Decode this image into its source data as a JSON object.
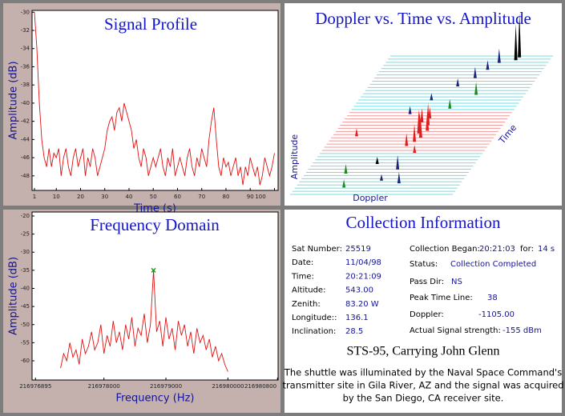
{
  "chart_data": [
    {
      "type": "line",
      "title": "Signal Profile",
      "xlabel": "Time (s)",
      "ylabel": "Amplitude (dB)",
      "x": [
        1,
        2,
        3,
        4,
        5,
        6,
        7,
        8,
        9,
        10,
        11,
        12,
        13,
        14,
        15,
        16,
        17,
        18,
        19,
        20,
        21,
        22,
        23,
        24,
        25,
        26,
        27,
        28,
        29,
        30,
        31,
        32,
        33,
        34,
        35,
        36,
        37,
        38,
        39,
        40,
        41,
        42,
        43,
        44,
        45,
        46,
        47,
        48,
        49,
        50,
        51,
        52,
        53,
        54,
        55,
        56,
        57,
        58,
        59,
        60,
        61,
        62,
        63,
        64,
        65,
        66,
        67,
        68,
        69,
        70,
        71,
        72,
        73,
        74,
        75,
        76,
        77,
        78,
        79,
        80,
        81,
        82,
        83,
        84,
        85,
        86,
        87,
        88,
        89,
        90,
        91,
        92,
        93,
        94,
        95,
        96,
        97,
        98,
        99,
        100
      ],
      "series": [
        {
          "color": "#e01010",
          "values": [
            -30,
            -34,
            -40,
            -44,
            -46,
            -47,
            -45,
            -47,
            -45.5,
            -46,
            -45,
            -48,
            -46,
            -45,
            -47,
            -48,
            -46,
            -45,
            -47,
            -46,
            -45,
            -48,
            -46,
            -47,
            -45,
            -46,
            -48,
            -47,
            -46,
            -45,
            -43,
            -42,
            -41.5,
            -43,
            -41,
            -40.5,
            -42,
            -40,
            -41,
            -42,
            -43,
            -45,
            -44,
            -46,
            -47,
            -45,
            -46,
            -48,
            -47,
            -46,
            -47,
            -46,
            -45,
            -47,
            -48,
            -46,
            -47,
            -45,
            -48,
            -47,
            -46,
            -47,
            -48,
            -46,
            -45,
            -47,
            -48,
            -46,
            -47,
            -45,
            -46,
            -47,
            -44,
            -42,
            -40.5,
            -44,
            -47,
            -48,
            -46,
            -47,
            -46.5,
            -48,
            -47,
            -46,
            -48,
            -47,
            -49,
            -47,
            -48,
            -46,
            -47,
            -48,
            -47,
            -49,
            -48,
            -46,
            -47,
            -48,
            -47,
            -45.5
          ]
        }
      ],
      "xlim": [
        0,
        101.5
      ],
      "xticks": [
        1,
        10,
        20,
        30,
        40,
        50,
        60,
        70,
        80,
        90,
        100
      ],
      "ylim": [
        -49.6,
        -29.8
      ],
      "yticks": [
        -30,
        -32,
        -34,
        -36,
        -38,
        -40,
        -42,
        -44,
        -46,
        -48
      ]
    },
    {
      "type": "waterfall",
      "title": "Doppler vs. Time vs. Amplitude",
      "xlabel": "Doppler",
      "ylabel": "Amplitude",
      "zlabel": "Time",
      "peaks": [
        {
          "t": 0.05,
          "d": 0.3,
          "a": 10,
          "color": "#1a8a1a"
        },
        {
          "t": 0.08,
          "d": 0.62,
          "a": 14,
          "color": "#1a237e"
        },
        {
          "t": 0.1,
          "d": 0.5,
          "a": 8,
          "color": "#1a237e"
        },
        {
          "t": 0.15,
          "d": 0.25,
          "a": 12,
          "color": "#1a8a1a"
        },
        {
          "t": 0.18,
          "d": 0.55,
          "a": 18,
          "color": "#1a237e"
        },
        {
          "t": 0.22,
          "d": 0.4,
          "a": 9,
          "color": "#000000"
        },
        {
          "t": 0.3,
          "d": 0.58,
          "a": 10,
          "color": "#e02020"
        },
        {
          "t": 0.35,
          "d": 0.5,
          "a": 16,
          "color": "#e02020"
        },
        {
          "t": 0.38,
          "d": 0.53,
          "a": 22,
          "color": "#e02020"
        },
        {
          "t": 0.41,
          "d": 0.55,
          "a": 26,
          "color": "#e02020"
        },
        {
          "t": 0.44,
          "d": 0.52,
          "a": 30,
          "color": "#e02020"
        },
        {
          "t": 0.46,
          "d": 0.56,
          "a": 24,
          "color": "#e02020"
        },
        {
          "t": 0.48,
          "d": 0.5,
          "a": 20,
          "color": "#e02020"
        },
        {
          "t": 0.5,
          "d": 0.54,
          "a": 28,
          "color": "#e02020"
        },
        {
          "t": 0.52,
          "d": 0.49,
          "a": 18,
          "color": "#e02020"
        },
        {
          "t": 0.55,
          "d": 0.52,
          "a": 14,
          "color": "#e02020"
        },
        {
          "t": 0.42,
          "d": 0.15,
          "a": 10,
          "color": "#e02020"
        },
        {
          "t": 0.58,
          "d": 0.38,
          "a": 10,
          "color": "#1a237e"
        },
        {
          "t": 0.62,
          "d": 0.6,
          "a": 12,
          "color": "#1a8a1a"
        },
        {
          "t": 0.68,
          "d": 0.45,
          "a": 9,
          "color": "#1a237e"
        },
        {
          "t": 0.72,
          "d": 0.7,
          "a": 16,
          "color": "#1a8a1a"
        },
        {
          "t": 0.78,
          "d": 0.55,
          "a": 10,
          "color": "#1a237e"
        },
        {
          "t": 0.84,
          "d": 0.62,
          "a": 14,
          "color": "#1a237e"
        },
        {
          "t": 0.9,
          "d": 0.66,
          "a": 12,
          "color": "#1a237e"
        },
        {
          "t": 0.95,
          "d": 0.7,
          "a": 18,
          "color": "#1a237e"
        },
        {
          "t": 0.97,
          "d": 0.79,
          "a": 45,
          "color": "#000000"
        },
        {
          "t": 0.99,
          "d": 0.8,
          "a": 55,
          "color": "#000000"
        }
      ]
    },
    {
      "type": "line",
      "title": "Frequency Domain",
      "xlabel": "Frequency (Hz)",
      "ylabel": "Amplitude (dB)",
      "x": [
        216977300,
        216977350,
        216977400,
        216977450,
        216977500,
        216977550,
        216977600,
        216977650,
        216977700,
        216977750,
        216977800,
        216977850,
        216977900,
        216977950,
        216978000,
        216978050,
        216978100,
        216978150,
        216978200,
        216978250,
        216978300,
        216978350,
        216978400,
        216978450,
        216978500,
        216978550,
        216978600,
        216978650,
        216978700,
        216978750,
        216978800,
        216978850,
        216978900,
        216978950,
        216979000,
        216979050,
        216979100,
        216979150,
        216979200,
        216979250,
        216979300,
        216979350,
        216979400,
        216979450,
        216979500,
        216979550,
        216979600,
        216979650,
        216979700,
        216979750,
        216979800,
        216979850,
        216979900,
        216979950,
        216980000
      ],
      "series": [
        {
          "color": "#e01010",
          "values": [
            -62,
            -58,
            -60,
            -55,
            -59,
            -57,
            -61,
            -54,
            -58,
            -56,
            -52,
            -57,
            -55,
            -50,
            -58,
            -53,
            -56,
            -49,
            -55,
            -52,
            -57,
            -50,
            -54,
            -48,
            -56,
            -51,
            -53,
            -47,
            -55,
            -50,
            -35,
            -52,
            -49,
            -56,
            -48,
            -54,
            -51,
            -57,
            -49,
            -53,
            -50,
            -56,
            -52,
            -58,
            -51,
            -55,
            -53,
            -57,
            -54,
            -59,
            -56,
            -60,
            -58,
            -61,
            -63
          ]
        }
      ],
      "marker": {
        "x": 216978800,
        "value": -35,
        "color": "#1a9a1a"
      },
      "xlim": [
        216976840,
        216980810
      ],
      "xticks": [
        216976895,
        216978000,
        216979000,
        216980000,
        216980800
      ],
      "ylim": [
        -65.3,
        -18.9
      ],
      "yticks": [
        -20,
        -25,
        -30,
        -35,
        -40,
        -45,
        -50,
        -55,
        -60
      ]
    }
  ],
  "info": {
    "title": "Collection Information",
    "left": [
      {
        "label": "Sat Number:",
        "value": "25519"
      },
      {
        "label": "Date:",
        "value": "11/04/98"
      },
      {
        "label": "Time:",
        "value": "20:21:09"
      },
      {
        "label": "Altitude:",
        "value": "543.00"
      },
      {
        "label": "Zenith:",
        "value": "83.20 W"
      },
      {
        "label": "Longitude::",
        "value": "136.1"
      },
      {
        "label": "Inclination:",
        "value": "28.5"
      }
    ],
    "right": [
      {
        "label": "Collection Began:",
        "value": "20:21:03",
        "extra_label": "for:",
        "extra_value": "14 s"
      },
      {
        "label": "Status:",
        "value": "Collection Completed"
      },
      {
        "label": "Pass Dir:",
        "value": "NS"
      },
      {
        "label": "Peak Time Line:",
        "value": "38"
      },
      {
        "label": "Doppler:",
        "value": "-1105.00"
      },
      {
        "label": "Actual Signal strength:",
        "value": "-155 dBm"
      }
    ],
    "headline": "STS-95, Carrying John Glenn",
    "lines": [
      "The shuttle was illuminated by the Naval Space Command's",
      "transmitter site in Gila River, AZ and the signal was acquired",
      "by the San Diego, CA receiver site."
    ]
  }
}
